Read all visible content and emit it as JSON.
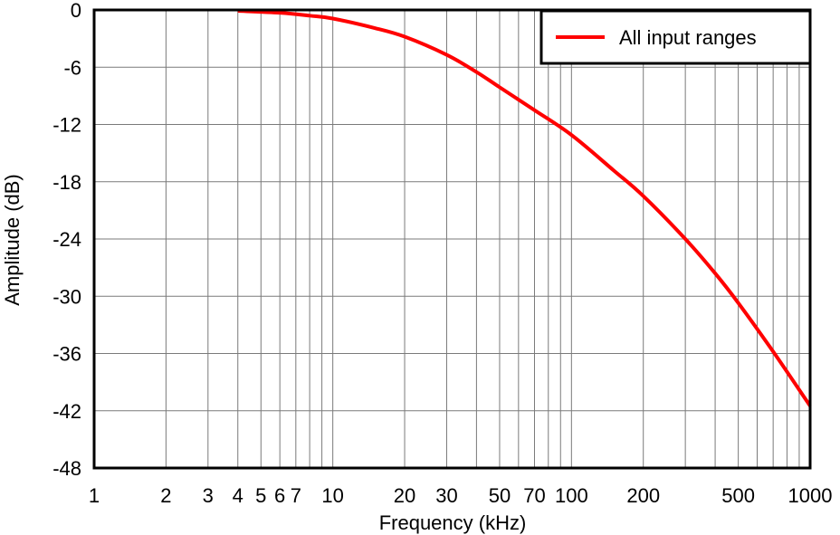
{
  "chart_data": {
    "type": "line",
    "x_scale": "log",
    "xlabel": "Frequency (kHz)",
    "ylabel": "Amplitude (dB)",
    "xlim": [
      1,
      1000
    ],
    "ylim": [
      -48,
      0
    ],
    "grid": true,
    "legend_position": "top-right",
    "x_ticks": [
      1,
      2,
      3,
      4,
      5,
      6,
      7,
      10,
      20,
      30,
      50,
      70,
      100,
      200,
      500,
      1000
    ],
    "x_tick_labels": [
      "1",
      "2",
      "3",
      "4",
      "5",
      "6",
      "7",
      "10",
      "20",
      "30",
      "50",
      "70",
      "100",
      "200",
      "500",
      "1000"
    ],
    "y_ticks": [
      0,
      -6,
      -12,
      -18,
      -24,
      -30,
      -36,
      -42,
      -48
    ],
    "y_tick_labels": [
      "0",
      "-6",
      "-12",
      "-18",
      "-24",
      "-30",
      "-36",
      "-42",
      "-48"
    ],
    "series": [
      {
        "name": "All input ranges",
        "color": "#ff0000",
        "x": [
          4,
          6,
          8,
          10,
          15,
          20,
          30,
          40,
          50,
          70,
          100,
          150,
          200,
          300,
          400,
          500,
          700,
          1000
        ],
        "y": [
          -0.1,
          -0.3,
          -0.6,
          -0.9,
          -1.9,
          -2.8,
          -4.7,
          -6.5,
          -8.1,
          -10.5,
          -13.1,
          -16.8,
          -19.5,
          -24,
          -27.6,
          -30.7,
          -35.8,
          -41.5
        ]
      }
    ]
  }
}
